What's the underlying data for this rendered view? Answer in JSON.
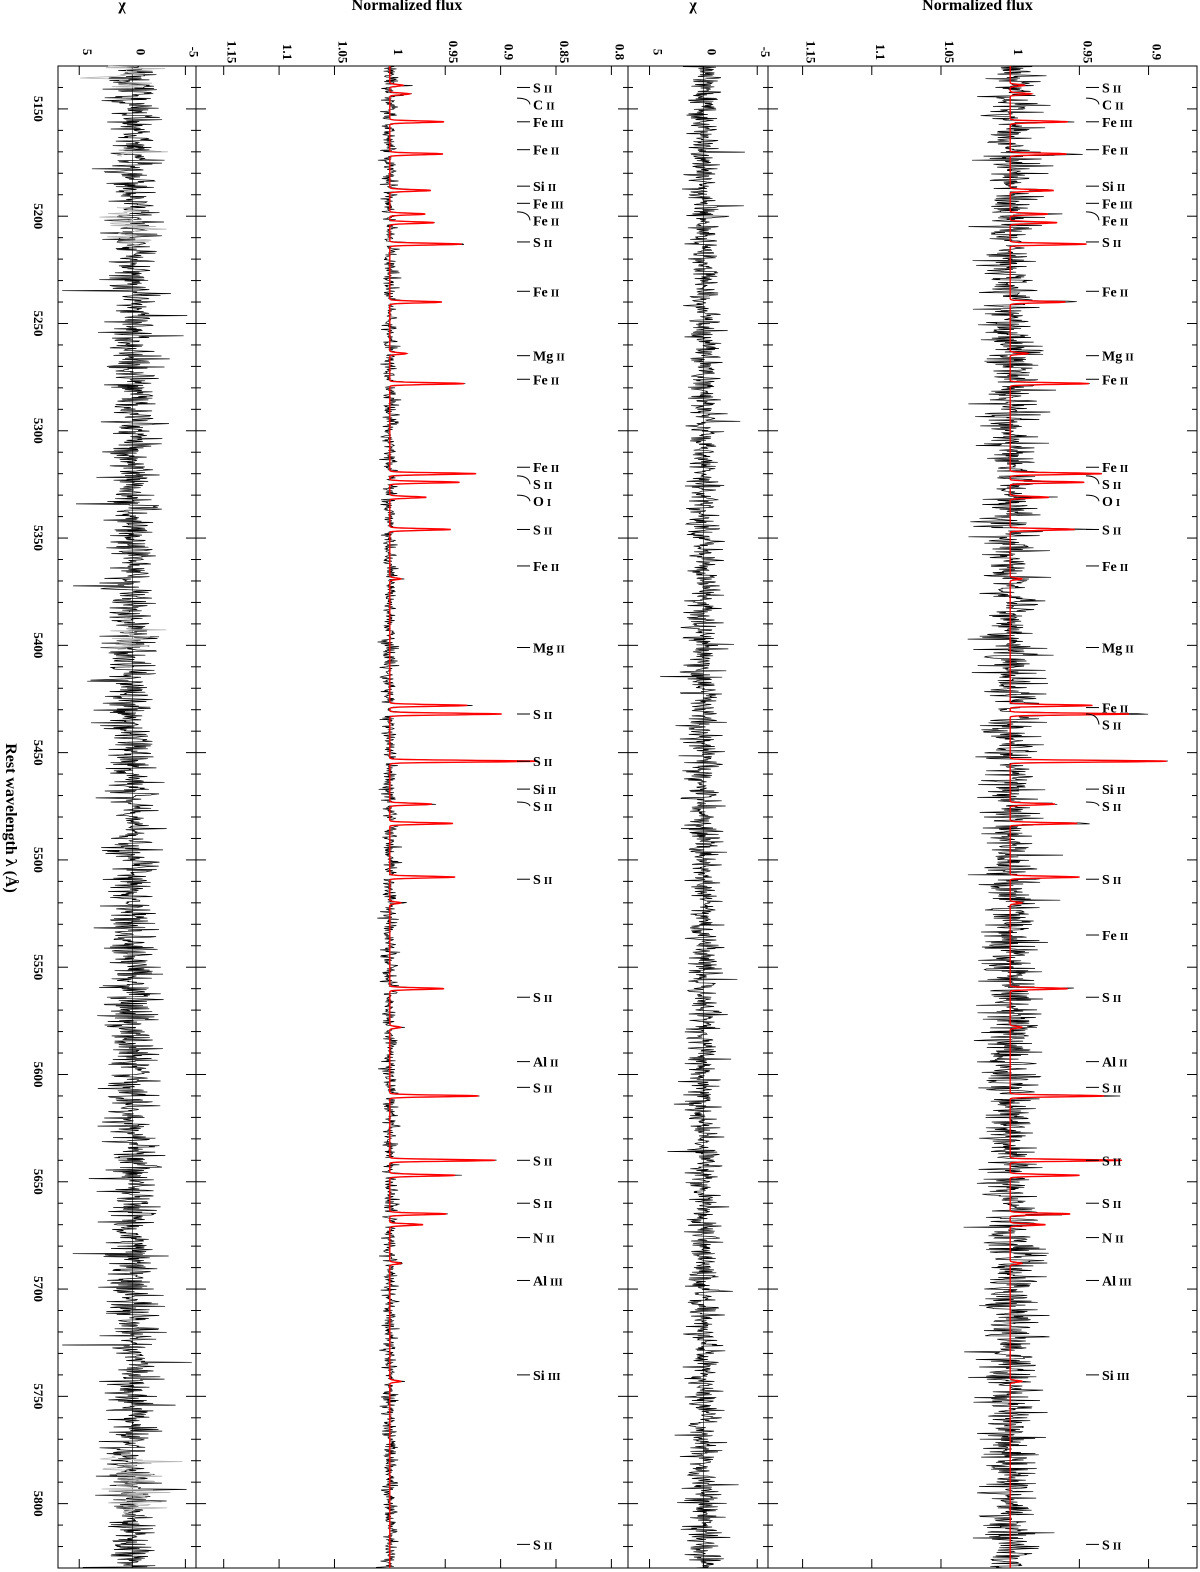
{
  "chart_data": {
    "type": "line",
    "orientation": "rotated-90-clockwise",
    "shared_axis": {
      "label": "Rest wavelength λ (Å)",
      "range": [
        5130,
        5830
      ],
      "ticks": [
        5150,
        5200,
        5250,
        5300,
        5350,
        5400,
        5450,
        5500,
        5550,
        5600,
        5650,
        5700,
        5750,
        5800
      ]
    },
    "panels": [
      {
        "id": "chi-lower",
        "ylabel": "χ",
        "ylim": [
          -6,
          7
        ],
        "ticks": [
          -5,
          0,
          5
        ],
        "tick_labels": [
          "-5",
          "0",
          "5"
        ],
        "series": [
          {
            "kind": "residual",
            "color": "#000000",
            "amplitude": 2.2,
            "seed": 11
          },
          {
            "kind": "masked-residual",
            "color": "#b5b5b5",
            "ranges": [
              [
                5130,
                5140
              ],
              [
                5168,
                5172
              ],
              [
                5196,
                5214
              ],
              [
                5392,
                5402
              ],
              [
                5778,
                5806
              ]
            ]
          }
        ]
      },
      {
        "id": "flux-lower",
        "ylabel": "Normalized flux",
        "ylim": [
          0.785,
          1.175
        ],
        "ticks": [
          0.8,
          0.85,
          0.9,
          0.95,
          1,
          1.05,
          1.1,
          1.15
        ],
        "tick_labels": [
          "0.8",
          "0.85",
          "0.9",
          "0.95",
          "1",
          "1.05",
          "1.1",
          "1.15"
        ],
        "series": [
          {
            "kind": "observed",
            "color": "#000000",
            "noise": 0.0035,
            "seed": 23
          },
          {
            "kind": "model",
            "color": "#ff0000",
            "lines": [
              [
                5139,
                0.988
              ],
              [
                5143,
                0.982
              ],
              [
                5156,
                0.951
              ],
              [
                5171,
                0.952
              ],
              [
                5188,
                0.963
              ],
              [
                5199,
                0.968
              ],
              [
                5203,
                0.96
              ],
              [
                5213,
                0.935
              ],
              [
                5240,
                0.953
              ],
              [
                5264,
                0.985
              ],
              [
                5278,
                0.933
              ],
              [
                5320,
                0.922
              ],
              [
                5324,
                0.937
              ],
              [
                5331,
                0.967
              ],
              [
                5346,
                0.945
              ],
              [
                5369,
                0.99
              ],
              [
                5428,
                0.93
              ],
              [
                5432,
                0.899
              ],
              [
                5454,
                0.867
              ],
              [
                5474,
                0.962
              ],
              [
                5483,
                0.943
              ],
              [
                5508,
                0.941
              ],
              [
                5520,
                0.99
              ],
              [
                5560,
                0.951
              ],
              [
                5578,
                0.99
              ],
              [
                5610,
                0.92
              ],
              [
                5640,
                0.905
              ],
              [
                5647,
                0.941
              ],
              [
                5665,
                0.949
              ],
              [
                5670,
                0.97
              ],
              [
                5688,
                0.99
              ],
              [
                5743,
                0.99
              ]
            ]
          }
        ]
      },
      {
        "id": "chi-upper",
        "ylabel": "χ",
        "ylim": [
          -6,
          7
        ],
        "ticks": [
          -5,
          0,
          5
        ],
        "tick_labels": [
          "-5",
          "0",
          "5"
        ],
        "series": [
          {
            "kind": "residual",
            "color": "#000000",
            "amplitude": 1.4,
            "seed": 37
          }
        ]
      },
      {
        "id": "flux-upper",
        "ylabel": "Normalized flux",
        "ylim": [
          0.865,
          1.175
        ],
        "ticks": [
          0.9,
          0.95,
          1,
          1.05,
          1.1,
          1.15
        ],
        "tick_labels": [
          "0.9",
          "0.95",
          "1",
          "1.05",
          "1.1",
          "1.15"
        ],
        "series": [
          {
            "kind": "observed",
            "color": "#000000",
            "noise": 0.011,
            "seed": 53
          },
          {
            "kind": "model",
            "color": "#ff0000",
            "scale": 0.85
          }
        ]
      }
    ],
    "line_ids_lower": [
      {
        "el": "S",
        "ion": "II",
        "lam": 5140
      },
      {
        "el": "C",
        "ion": "II",
        "lam": 5145
      },
      {
        "el": "Fe",
        "ion": "III",
        "lam": 5156
      },
      {
        "el": "Fe",
        "ion": "II",
        "lam": 5169
      },
      {
        "el": "Si",
        "ion": "II",
        "lam": 5186
      },
      {
        "el": "Fe",
        "ion": "III",
        "lam": 5194
      },
      {
        "el": "Fe",
        "ion": "II",
        "lam": 5198
      },
      {
        "el": "S",
        "ion": "II",
        "lam": 5212
      },
      {
        "el": "Fe",
        "ion": "II",
        "lam": 5235
      },
      {
        "el": "Mg",
        "ion": "II",
        "lam": 5265
      },
      {
        "el": "Fe",
        "ion": "II",
        "lam": 5276
      },
      {
        "el": "Fe",
        "ion": "II",
        "lam": 5317
      },
      {
        "el": "S",
        "ion": "II",
        "lam": 5321
      },
      {
        "el": "O",
        "ion": "I",
        "lam": 5330
      },
      {
        "el": "S",
        "ion": "II",
        "lam": 5346
      },
      {
        "el": "Fe",
        "ion": "II",
        "lam": 5363
      },
      {
        "el": "Mg",
        "ion": "II",
        "lam": 5401
      },
      {
        "el": "S",
        "ion": "II",
        "lam": 5432
      },
      {
        "el": "S",
        "ion": "II",
        "lam": 5454
      },
      {
        "el": "Si",
        "ion": "II",
        "lam": 5467
      },
      {
        "el": "S",
        "ion": "II",
        "lam": 5473
      },
      {
        "el": "S",
        "ion": "II",
        "lam": 5509
      },
      {
        "el": "S",
        "ion": "II",
        "lam": 5564
      },
      {
        "el": "Al",
        "ion": "II",
        "lam": 5594
      },
      {
        "el": "S",
        "ion": "II",
        "lam": 5606
      },
      {
        "el": "S",
        "ion": "II",
        "lam": 5640
      },
      {
        "el": "S",
        "ion": "II",
        "lam": 5660
      },
      {
        "el": "N",
        "ion": "II",
        "lam": 5676
      },
      {
        "el": "Al",
        "ion": "III",
        "lam": 5696
      },
      {
        "el": "Si",
        "ion": "III",
        "lam": 5740
      },
      {
        "el": "S",
        "ion": "II",
        "lam": 5819
      }
    ],
    "line_ids_upper": [
      {
        "el": "S",
        "ion": "II",
        "lam": 5140
      },
      {
        "el": "C",
        "ion": "II",
        "lam": 5145
      },
      {
        "el": "Fe",
        "ion": "III",
        "lam": 5156
      },
      {
        "el": "Fe",
        "ion": "II",
        "lam": 5169
      },
      {
        "el": "Si",
        "ion": "II",
        "lam": 5186
      },
      {
        "el": "Fe",
        "ion": "III",
        "lam": 5194
      },
      {
        "el": "Fe",
        "ion": "II",
        "lam": 5198
      },
      {
        "el": "S",
        "ion": "II",
        "lam": 5212
      },
      {
        "el": "Fe",
        "ion": "II",
        "lam": 5235
      },
      {
        "el": "Mg",
        "ion": "II",
        "lam": 5265
      },
      {
        "el": "Fe",
        "ion": "II",
        "lam": 5276
      },
      {
        "el": "Fe",
        "ion": "II",
        "lam": 5317
      },
      {
        "el": "S",
        "ion": "II",
        "lam": 5321
      },
      {
        "el": "O",
        "ion": "I",
        "lam": 5330
      },
      {
        "el": "S",
        "ion": "II",
        "lam": 5346
      },
      {
        "el": "Fe",
        "ion": "II",
        "lam": 5363
      },
      {
        "el": "Mg",
        "ion": "II",
        "lam": 5401
      },
      {
        "el": "Fe",
        "ion": "II",
        "lam": 5429
      },
      {
        "el": "S",
        "ion": "II",
        "lam": 5432
      },
      {
        "el": "Si",
        "ion": "II",
        "lam": 5467
      },
      {
        "el": "S",
        "ion": "II",
        "lam": 5473
      },
      {
        "el": "S",
        "ion": "II",
        "lam": 5509
      },
      {
        "el": "Fe",
        "ion": "II",
        "lam": 5535
      },
      {
        "el": "S",
        "ion": "II",
        "lam": 5564
      },
      {
        "el": "Al",
        "ion": "II",
        "lam": 5594
      },
      {
        "el": "S",
        "ion": "II",
        "lam": 5606
      },
      {
        "el": "S",
        "ion": "II",
        "lam": 5640
      },
      {
        "el": "S",
        "ion": "II",
        "lam": 5660
      },
      {
        "el": "N",
        "ion": "II",
        "lam": 5676
      },
      {
        "el": "Al",
        "ion": "III",
        "lam": 5696
      },
      {
        "el": "Si",
        "ion": "III",
        "lam": 5740
      },
      {
        "el": "S",
        "ion": "II",
        "lam": 5819
      }
    ]
  }
}
